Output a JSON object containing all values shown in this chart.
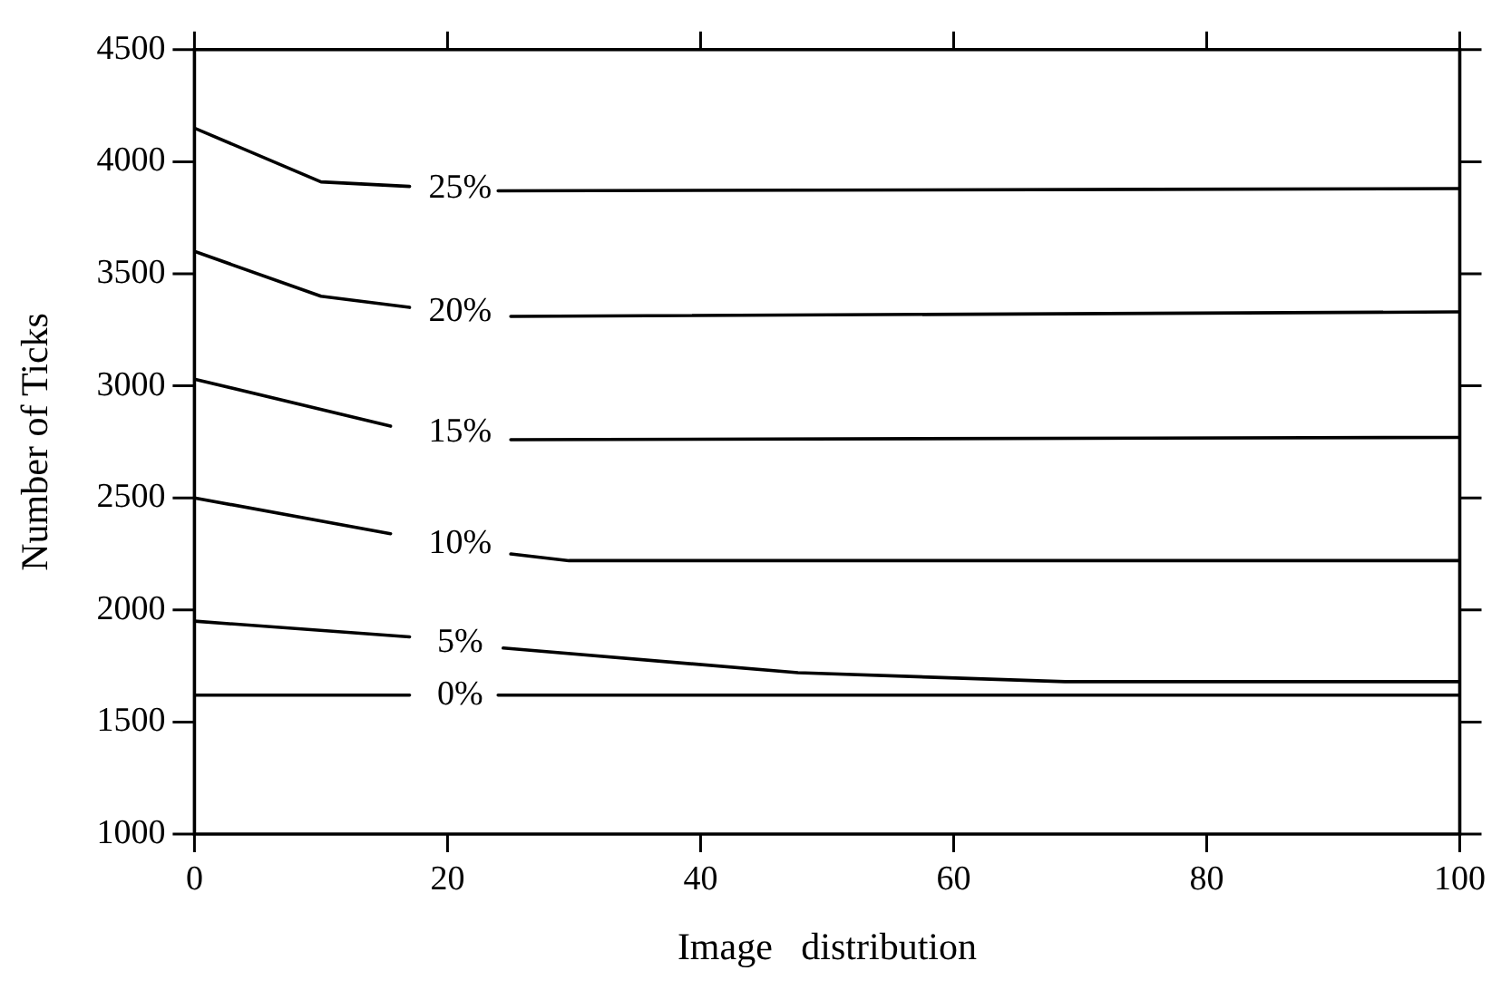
{
  "chart_data": {
    "type": "line",
    "xlabel": "Image   distribution",
    "ylabel": "Number of Ticks",
    "xlim": [
      0,
      100
    ],
    "xticks": [
      0,
      20,
      40,
      60,
      80,
      100
    ],
    "ylim": [
      1000,
      4500
    ],
    "yticks": [
      1000,
      1500,
      2000,
      2500,
      3000,
      3500,
      4000,
      4500
    ],
    "grid": false,
    "legend": false,
    "marker": "none",
    "line_style": "solid",
    "series": [
      {
        "name": "25%",
        "color": "#000000",
        "x": [
          0,
          10,
          17,
          21,
          24,
          100
        ],
        "values": [
          4150,
          3910,
          3890,
          null,
          3870,
          3880
        ]
      },
      {
        "name": "20%",
        "color": "#000000",
        "x": [
          0,
          10,
          17,
          21,
          25,
          100
        ],
        "values": [
          3600,
          3400,
          3350,
          null,
          3310,
          3330
        ]
      },
      {
        "name": "15%",
        "color": "#000000",
        "x": [
          0,
          15.5,
          21,
          25,
          100
        ],
        "values": [
          3030,
          2820,
          null,
          2760,
          2770
        ]
      },
      {
        "name": "10%",
        "color": "#000000",
        "x": [
          0,
          15.5,
          21,
          25,
          29.6,
          100
        ],
        "values": [
          2500,
          2340,
          null,
          2250,
          2220,
          2220
        ]
      },
      {
        "name": "5%",
        "color": "#000000",
        "x": [
          0,
          17,
          21,
          24.4,
          47.7,
          68.8,
          100
        ],
        "values": [
          1950,
          1880,
          null,
          1830,
          1720,
          1680,
          1680
        ]
      },
      {
        "name": "0%",
        "color": "#000000",
        "x": [
          0,
          17,
          21,
          24,
          100
        ],
        "values": [
          1620,
          1620,
          null,
          1620,
          1620
        ]
      }
    ]
  }
}
